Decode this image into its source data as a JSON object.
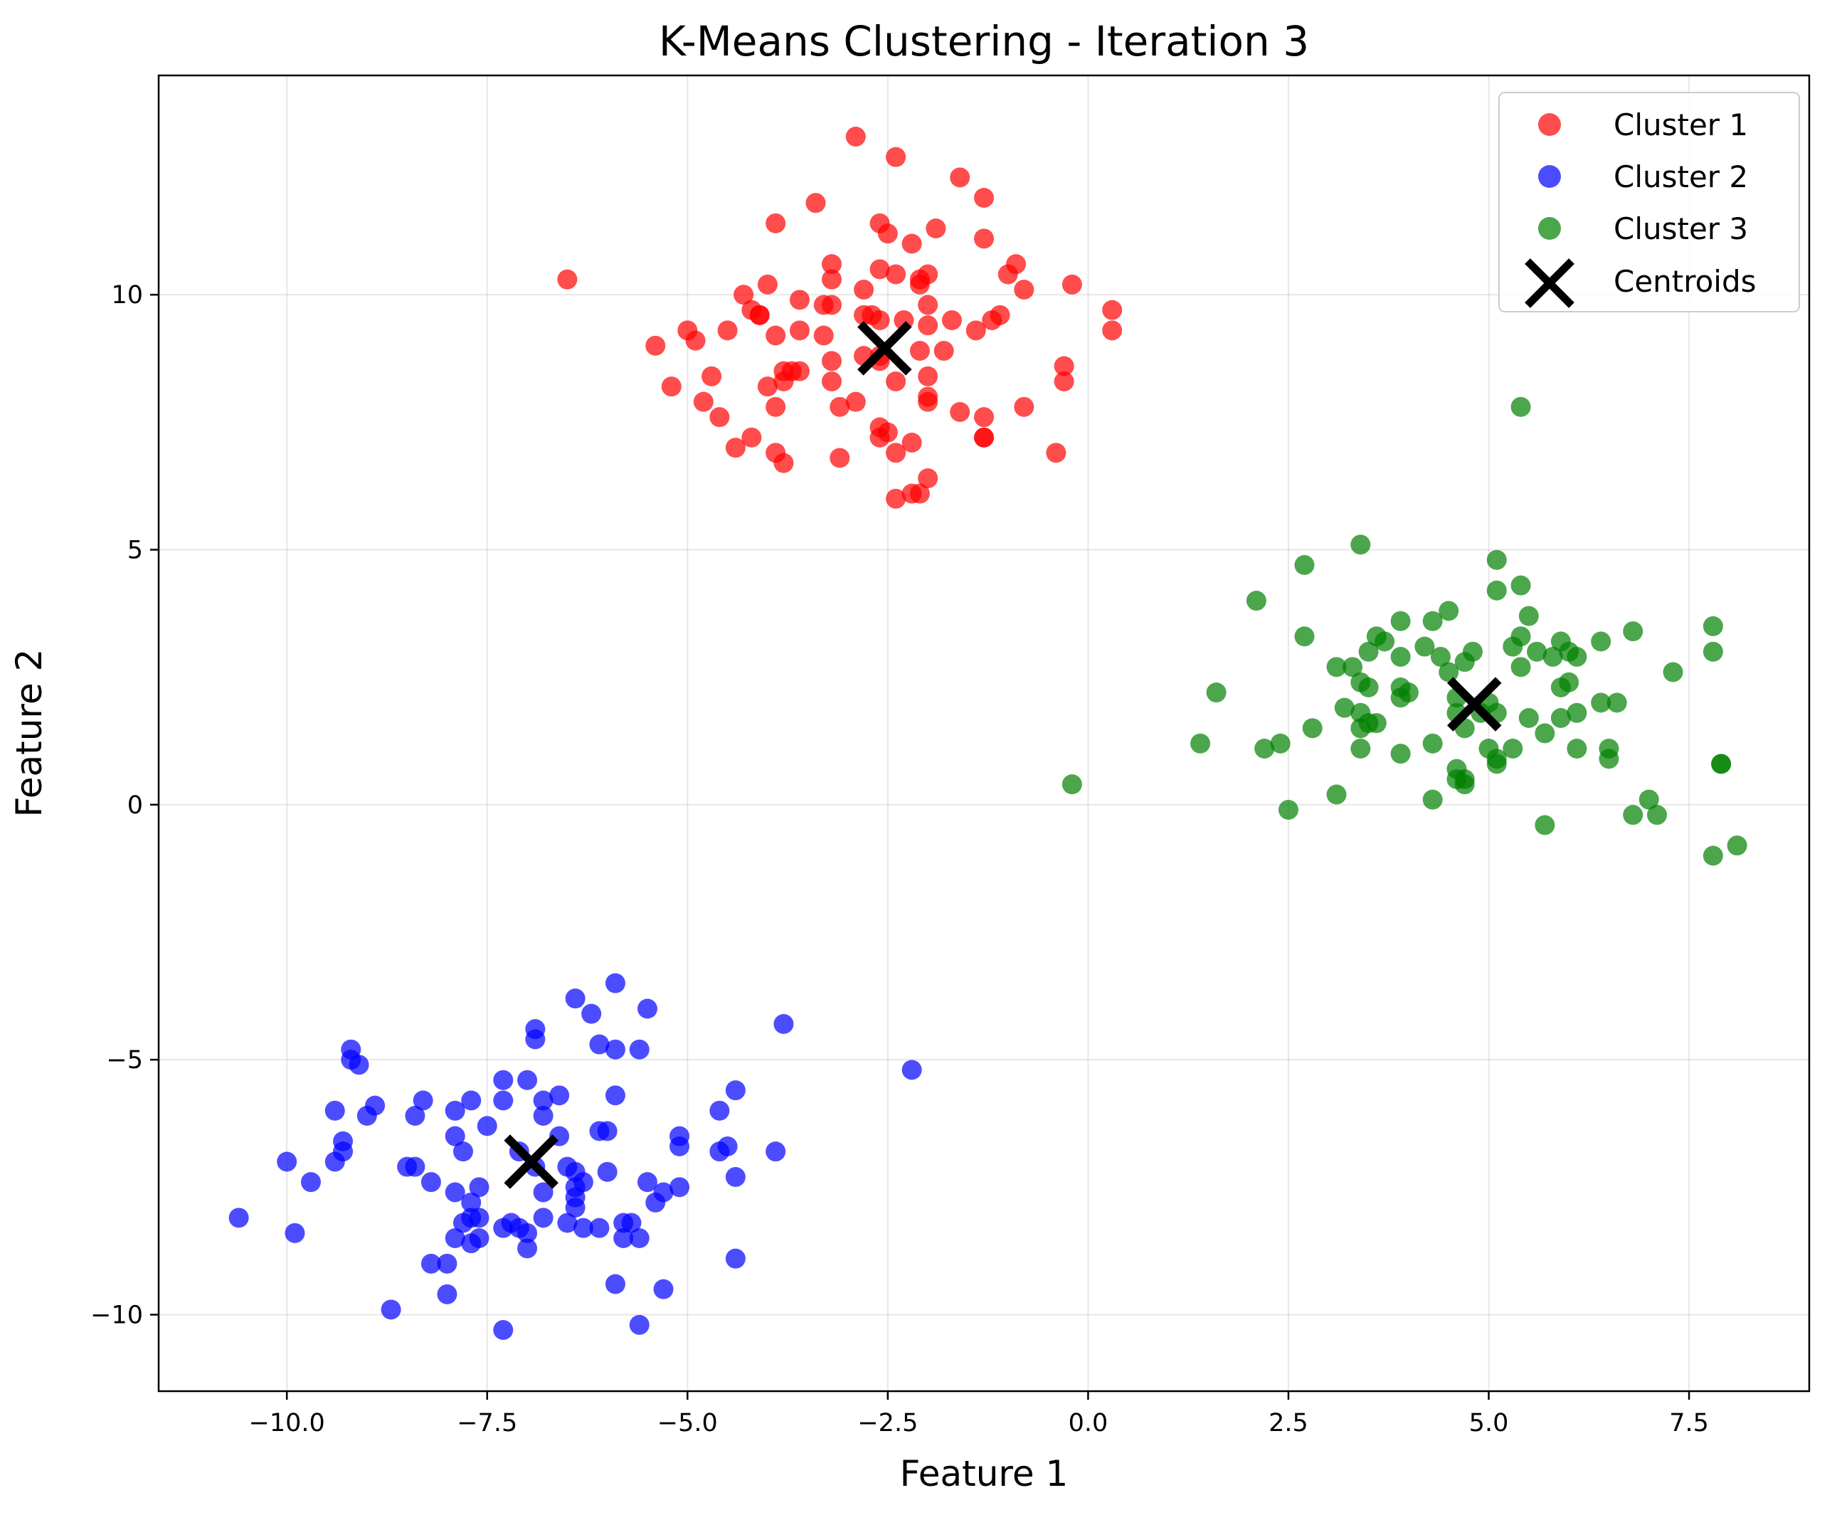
{
  "chart_data": {
    "type": "scatter",
    "title": "K-Means Clustering - Iteration 3",
    "xlabel": "Feature 1",
    "ylabel": "Feature 2",
    "xlim": [
      -11.6,
      9.0
    ],
    "ylim": [
      -11.5,
      14.3
    ],
    "xticks": [
      -10.0,
      -7.5,
      -5.0,
      -2.5,
      0.0,
      2.5,
      5.0,
      7.5
    ],
    "xtick_labels": [
      "−10.0",
      "−7.5",
      "−5.0",
      "−2.5",
      "0.0",
      "2.5",
      "5.0",
      "7.5"
    ],
    "yticks": [
      -10,
      -5,
      0,
      5,
      10
    ],
    "ytick_labels": [
      "−10",
      "−5",
      "0",
      "5",
      "10"
    ],
    "grid": true,
    "legend_position": "top-right",
    "series": [
      {
        "name": "Cluster 1",
        "color": "#ff0000",
        "points": [
          [
            -2.9,
            13.1
          ],
          [
            -2.4,
            12.7
          ],
          [
            -1.6,
            12.3
          ],
          [
            -1.3,
            11.9
          ],
          [
            -3.4,
            11.8
          ],
          [
            -3.9,
            11.4
          ],
          [
            -2.6,
            11.4
          ],
          [
            -2.5,
            11.2
          ],
          [
            -1.9,
            11.3
          ],
          [
            -2.2,
            11.0
          ],
          [
            -1.3,
            11.1
          ],
          [
            -3.2,
            10.6
          ],
          [
            -2.6,
            10.5
          ],
          [
            -2.4,
            10.4
          ],
          [
            -2.0,
            10.4
          ],
          [
            -3.2,
            10.3
          ],
          [
            -0.9,
            10.6
          ],
          [
            -1.0,
            10.4
          ],
          [
            -6.5,
            10.3
          ],
          [
            -4.0,
            10.2
          ],
          [
            -2.1,
            10.2
          ],
          [
            -2.1,
            10.3
          ],
          [
            -4.3,
            10.0
          ],
          [
            -3.6,
            9.9
          ],
          [
            -2.8,
            10.1
          ],
          [
            -0.8,
            10.1
          ],
          [
            -0.2,
            10.2
          ],
          [
            -4.2,
            9.7
          ],
          [
            -4.1,
            9.6
          ],
          [
            -3.3,
            9.8
          ],
          [
            -3.2,
            9.8
          ],
          [
            -2.8,
            9.6
          ],
          [
            -2.7,
            9.6
          ],
          [
            -2.6,
            9.5
          ],
          [
            -2.3,
            9.5
          ],
          [
            -2.0,
            9.8
          ],
          [
            -2.0,
            9.4
          ],
          [
            -1.7,
            9.5
          ],
          [
            -1.1,
            9.6
          ],
          [
            -1.2,
            9.5
          ],
          [
            0.3,
            9.7
          ],
          [
            0.3,
            9.3
          ],
          [
            -5.0,
            9.3
          ],
          [
            -4.9,
            9.1
          ],
          [
            -4.5,
            9.3
          ],
          [
            -4.1,
            9.6
          ],
          [
            -3.9,
            9.2
          ],
          [
            -3.6,
            9.3
          ],
          [
            -3.3,
            9.2
          ],
          [
            -1.4,
            9.3
          ],
          [
            -5.4,
            9.0
          ],
          [
            -2.8,
            8.8
          ],
          [
            -2.6,
            8.8
          ],
          [
            -2.1,
            8.9
          ],
          [
            -1.8,
            8.9
          ],
          [
            -3.8,
            8.5
          ],
          [
            -3.6,
            8.5
          ],
          [
            -3.7,
            8.5
          ],
          [
            -3.2,
            8.7
          ],
          [
            -2.6,
            8.7
          ],
          [
            -2.0,
            8.4
          ],
          [
            -0.3,
            8.6
          ],
          [
            -4.7,
            8.4
          ],
          [
            -5.2,
            8.2
          ],
          [
            -4.0,
            8.2
          ],
          [
            -3.8,
            8.3
          ],
          [
            -3.2,
            8.3
          ],
          [
            -2.4,
            8.3
          ],
          [
            -0.3,
            8.3
          ],
          [
            -4.8,
            7.9
          ],
          [
            -3.9,
            7.8
          ],
          [
            -3.1,
            7.8
          ],
          [
            -2.9,
            7.9
          ],
          [
            -2.0,
            8.0
          ],
          [
            -2.0,
            7.9
          ],
          [
            -1.6,
            7.7
          ],
          [
            -1.3,
            7.6
          ],
          [
            -0.8,
            7.8
          ],
          [
            -4.6,
            7.6
          ],
          [
            -4.2,
            7.2
          ],
          [
            -2.6,
            7.4
          ],
          [
            -2.5,
            7.3
          ],
          [
            -2.6,
            7.2
          ],
          [
            -2.2,
            7.1
          ],
          [
            -1.3,
            7.2
          ],
          [
            -1.3,
            7.2
          ],
          [
            -4.4,
            7.0
          ],
          [
            -3.9,
            6.9
          ],
          [
            -3.8,
            6.7
          ],
          [
            -3.1,
            6.8
          ],
          [
            -2.4,
            6.9
          ],
          [
            -0.4,
            6.9
          ],
          [
            -2.0,
            6.4
          ],
          [
            -2.4,
            6.0
          ],
          [
            -2.2,
            6.1
          ],
          [
            -2.1,
            6.1
          ]
        ]
      },
      {
        "name": "Cluster 2",
        "color": "#0000ff",
        "points": [
          [
            -5.9,
            -3.5
          ],
          [
            -6.4,
            -3.8
          ],
          [
            -6.2,
            -4.1
          ],
          [
            -5.5,
            -4.0
          ],
          [
            -3.8,
            -4.3
          ],
          [
            -6.9,
            -4.4
          ],
          [
            -6.9,
            -4.6
          ],
          [
            -6.1,
            -4.7
          ],
          [
            -5.9,
            -4.8
          ],
          [
            -5.6,
            -4.8
          ],
          [
            -9.2,
            -4.8
          ],
          [
            -9.2,
            -5.0
          ],
          [
            -9.1,
            -5.1
          ],
          [
            -2.2,
            -5.2
          ],
          [
            -7.3,
            -5.4
          ],
          [
            -7.0,
            -5.4
          ],
          [
            -7.3,
            -5.8
          ],
          [
            -6.8,
            -5.8
          ],
          [
            -6.6,
            -5.7
          ],
          [
            -5.9,
            -5.7
          ],
          [
            -4.4,
            -5.6
          ],
          [
            -7.7,
            -5.8
          ],
          [
            -8.3,
            -5.8
          ],
          [
            -8.9,
            -5.9
          ],
          [
            -9.0,
            -6.1
          ],
          [
            -9.4,
            -6.0
          ],
          [
            -8.4,
            -6.1
          ],
          [
            -7.9,
            -6.0
          ],
          [
            -6.8,
            -6.1
          ],
          [
            -4.6,
            -6.0
          ],
          [
            -7.5,
            -6.3
          ],
          [
            -6.1,
            -6.4
          ],
          [
            -6.0,
            -6.4
          ],
          [
            -5.1,
            -6.5
          ],
          [
            -9.3,
            -6.6
          ],
          [
            -7.9,
            -6.5
          ],
          [
            -6.6,
            -6.5
          ],
          [
            -9.3,
            -6.8
          ],
          [
            -7.8,
            -6.8
          ],
          [
            -7.1,
            -6.8
          ],
          [
            -4.6,
            -6.8
          ],
          [
            -4.5,
            -6.7
          ],
          [
            -5.1,
            -6.7
          ],
          [
            -3.9,
            -6.8
          ],
          [
            -9.4,
            -7.0
          ],
          [
            -10.0,
            -7.0
          ],
          [
            -8.5,
            -7.1
          ],
          [
            -8.4,
            -7.1
          ],
          [
            -6.9,
            -7.1
          ],
          [
            -6.5,
            -7.1
          ],
          [
            -6.4,
            -7.2
          ],
          [
            -6.0,
            -7.2
          ],
          [
            -4.4,
            -7.3
          ],
          [
            -9.7,
            -7.4
          ],
          [
            -8.2,
            -7.4
          ],
          [
            -7.6,
            -7.5
          ],
          [
            -6.3,
            -7.4
          ],
          [
            -6.4,
            -7.5
          ],
          [
            -5.5,
            -7.4
          ],
          [
            -5.1,
            -7.5
          ],
          [
            -7.9,
            -7.6
          ],
          [
            -7.7,
            -7.8
          ],
          [
            -6.8,
            -7.6
          ],
          [
            -6.4,
            -7.7
          ],
          [
            -5.3,
            -7.6
          ],
          [
            -5.4,
            -7.8
          ],
          [
            -6.4,
            -7.9
          ],
          [
            -7.7,
            -8.1
          ],
          [
            -7.6,
            -8.1
          ],
          [
            -7.8,
            -8.2
          ],
          [
            -7.2,
            -8.2
          ],
          [
            -7.3,
            -8.3
          ],
          [
            -7.1,
            -8.3
          ],
          [
            -6.8,
            -8.1
          ],
          [
            -6.5,
            -8.2
          ],
          [
            -6.3,
            -8.3
          ],
          [
            -6.1,
            -8.3
          ],
          [
            -5.8,
            -8.2
          ],
          [
            -5.7,
            -8.2
          ],
          [
            -10.6,
            -8.1
          ],
          [
            -9.9,
            -8.4
          ],
          [
            -7.9,
            -8.5
          ],
          [
            -7.7,
            -8.6
          ],
          [
            -7.6,
            -8.5
          ],
          [
            -7.0,
            -8.4
          ],
          [
            -7.0,
            -8.7
          ],
          [
            -5.8,
            -8.5
          ],
          [
            -5.6,
            -8.5
          ],
          [
            -8.2,
            -9.0
          ],
          [
            -8.0,
            -9.0
          ],
          [
            -4.4,
            -8.9
          ],
          [
            -5.9,
            -9.4
          ],
          [
            -8.0,
            -9.6
          ],
          [
            -5.3,
            -9.5
          ],
          [
            -8.7,
            -9.9
          ],
          [
            -5.6,
            -10.2
          ],
          [
            -7.3,
            -10.3
          ]
        ]
      },
      {
        "name": "Cluster 3",
        "color": "#008000",
        "points": [
          [
            5.4,
            7.8
          ],
          [
            3.4,
            5.1
          ],
          [
            2.7,
            4.7
          ],
          [
            5.1,
            4.8
          ],
          [
            5.4,
            4.3
          ],
          [
            5.1,
            4.2
          ],
          [
            2.1,
            4.0
          ],
          [
            4.5,
            3.8
          ],
          [
            4.3,
            3.6
          ],
          [
            3.9,
            3.6
          ],
          [
            5.5,
            3.7
          ],
          [
            7.8,
            3.5
          ],
          [
            6.8,
            3.4
          ],
          [
            2.7,
            3.3
          ],
          [
            3.6,
            3.3
          ],
          [
            3.7,
            3.2
          ],
          [
            4.2,
            3.1
          ],
          [
            5.4,
            3.3
          ],
          [
            5.3,
            3.1
          ],
          [
            5.9,
            3.2
          ],
          [
            6.4,
            3.2
          ],
          [
            3.5,
            3.0
          ],
          [
            3.9,
            2.9
          ],
          [
            4.4,
            2.9
          ],
          [
            4.8,
            3.0
          ],
          [
            5.6,
            3.0
          ],
          [
            5.8,
            2.9
          ],
          [
            6.0,
            3.0
          ],
          [
            6.1,
            2.9
          ],
          [
            7.8,
            3.0
          ],
          [
            3.1,
            2.7
          ],
          [
            3.3,
            2.7
          ],
          [
            4.7,
            2.8
          ],
          [
            4.5,
            2.6
          ],
          [
            5.4,
            2.7
          ],
          [
            7.3,
            2.6
          ],
          [
            3.4,
            2.4
          ],
          [
            3.5,
            2.3
          ],
          [
            3.9,
            2.3
          ],
          [
            5.9,
            2.3
          ],
          [
            6.0,
            2.4
          ],
          [
            1.6,
            2.2
          ],
          [
            3.9,
            2.1
          ],
          [
            4.0,
            2.2
          ],
          [
            4.6,
            2.1
          ],
          [
            5.0,
            2.0
          ],
          [
            6.4,
            2.0
          ],
          [
            6.6,
            2.0
          ],
          [
            3.2,
            1.9
          ],
          [
            3.4,
            1.8
          ],
          [
            3.5,
            1.6
          ],
          [
            3.6,
            1.6
          ],
          [
            4.6,
            1.8
          ],
          [
            4.9,
            1.8
          ],
          [
            5.1,
            1.8
          ],
          [
            5.5,
            1.7
          ],
          [
            5.9,
            1.7
          ],
          [
            6.1,
            1.8
          ],
          [
            3.4,
            1.5
          ],
          [
            2.8,
            1.5
          ],
          [
            4.7,
            1.5
          ],
          [
            5.7,
            1.4
          ],
          [
            4.3,
            1.2
          ],
          [
            1.4,
            1.2
          ],
          [
            2.4,
            1.2
          ],
          [
            2.2,
            1.1
          ],
          [
            3.4,
            1.1
          ],
          [
            3.9,
            1.0
          ],
          [
            5.0,
            1.1
          ],
          [
            5.3,
            1.1
          ],
          [
            5.1,
            0.9
          ],
          [
            6.1,
            1.1
          ],
          [
            6.5,
            1.1
          ],
          [
            6.5,
            0.9
          ],
          [
            4.6,
            0.7
          ],
          [
            4.7,
            0.5
          ],
          [
            4.6,
            0.5
          ],
          [
            4.7,
            0.4
          ],
          [
            5.1,
            0.8
          ],
          [
            -0.2,
            0.4
          ],
          [
            3.1,
            0.2
          ],
          [
            4.3,
            0.1
          ],
          [
            7.0,
            0.1
          ],
          [
            7.9,
            0.8
          ],
          [
            7.9,
            0.8
          ],
          [
            6.8,
            -0.2
          ],
          [
            7.1,
            -0.2
          ],
          [
            2.5,
            -0.1
          ],
          [
            5.7,
            -0.4
          ],
          [
            8.1,
            -0.8
          ],
          [
            7.8,
            -1.0
          ]
        ]
      }
    ],
    "centroids": {
      "name": "Centroids",
      "color": "#000000",
      "points": [
        [
          -2.54,
          8.95
        ],
        [
          -6.95,
          -7.0
        ],
        [
          4.82,
          1.97
        ]
      ]
    }
  }
}
